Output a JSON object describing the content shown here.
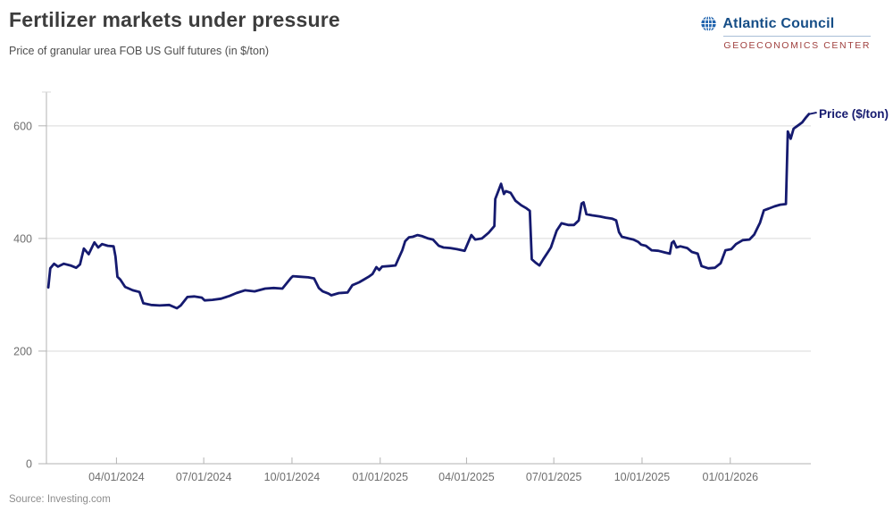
{
  "header": {
    "title": "Fertilizer markets under pressure",
    "subtitle": "Price of granular urea FOB US Gulf futures (in $/ton)",
    "logo": {
      "org": "Atlantic Council",
      "center": "GEOECONOMICS CENTER",
      "icon": "globe-icon",
      "org_color": "#164e87",
      "center_color": "#a0413f"
    }
  },
  "footer": {
    "source": "Source: Investing.com"
  },
  "chart_data": {
    "type": "line",
    "title": "Fertilizer markets under pressure",
    "subtitle": "Price of granular urea FOB US Gulf futures (in $/ton)",
    "series_label": "Price ($/ton)",
    "xlabel": "",
    "ylabel": "",
    "line_color": "#151a6f",
    "grid_color": "#d9d9d9",
    "axis_color": "#b3b3b3",
    "tick_label_color": "#6e6e6e",
    "legend_position": "right-end-of-line",
    "grid": "horizontal-only",
    "x_domain": [
      "2024-01-19",
      "2026-03-26"
    ],
    "y_domain": [
      0,
      660
    ],
    "y_ticks": [
      0,
      200,
      400,
      600
    ],
    "x_ticks": [
      {
        "date": "2024-04-01",
        "label": "04/01/2024"
      },
      {
        "date": "2024-07-01",
        "label": "07/01/2024"
      },
      {
        "date": "2024-10-01",
        "label": "10/01/2024"
      },
      {
        "date": "2025-01-01",
        "label": "01/01/2025"
      },
      {
        "date": "2025-04-01",
        "label": "04/01/2025"
      },
      {
        "date": "2025-07-01",
        "label": "07/01/2025"
      },
      {
        "date": "2025-10-01",
        "label": "10/01/2025"
      },
      {
        "date": "2026-01-01",
        "label": "01/01/2026"
      }
    ],
    "points": [
      [
        "2024-01-21",
        313
      ],
      [
        "2024-01-23",
        347
      ],
      [
        "2024-01-27",
        355
      ],
      [
        "2024-01-31",
        350
      ],
      [
        "2024-02-06",
        355
      ],
      [
        "2024-02-13",
        352
      ],
      [
        "2024-02-19",
        348
      ],
      [
        "2024-02-23",
        354
      ],
      [
        "2024-02-27",
        382
      ],
      [
        "2024-03-03",
        372
      ],
      [
        "2024-03-09",
        393
      ],
      [
        "2024-03-13",
        384
      ],
      [
        "2024-03-17",
        390
      ],
      [
        "2024-03-23",
        387
      ],
      [
        "2024-03-29",
        386
      ],
      [
        "2024-03-31",
        368
      ],
      [
        "2024-04-02",
        332
      ],
      [
        "2024-04-05",
        327
      ],
      [
        "2024-04-10",
        314
      ],
      [
        "2024-04-18",
        308
      ],
      [
        "2024-04-25",
        305
      ],
      [
        "2024-04-29",
        285
      ],
      [
        "2024-05-07",
        282
      ],
      [
        "2024-05-16",
        281
      ],
      [
        "2024-05-26",
        282
      ],
      [
        "2024-06-03",
        276
      ],
      [
        "2024-06-07",
        281
      ],
      [
        "2024-06-14",
        296
      ],
      [
        "2024-06-21",
        297
      ],
      [
        "2024-06-29",
        295
      ],
      [
        "2024-07-02",
        290
      ],
      [
        "2024-07-10",
        291
      ],
      [
        "2024-07-19",
        293
      ],
      [
        "2024-07-28",
        298
      ],
      [
        "2024-08-04",
        303
      ],
      [
        "2024-08-13",
        308
      ],
      [
        "2024-08-23",
        306
      ],
      [
        "2024-09-03",
        311
      ],
      [
        "2024-09-12",
        312
      ],
      [
        "2024-09-21",
        311
      ],
      [
        "2024-09-30",
        330
      ],
      [
        "2024-10-02",
        333
      ],
      [
        "2024-10-09",
        332
      ],
      [
        "2024-10-18",
        331
      ],
      [
        "2024-10-24",
        329
      ],
      [
        "2024-10-29",
        312
      ],
      [
        "2024-11-02",
        306
      ],
      [
        "2024-11-08",
        302
      ],
      [
        "2024-11-11",
        299
      ],
      [
        "2024-11-19",
        303
      ],
      [
        "2024-11-28",
        304
      ],
      [
        "2024-12-03",
        317
      ],
      [
        "2024-12-10",
        322
      ],
      [
        "2024-12-15",
        327
      ],
      [
        "2024-12-20",
        332
      ],
      [
        "2024-12-24",
        337
      ],
      [
        "2024-12-28",
        349
      ],
      [
        "2024-12-31",
        344
      ],
      [
        "2025-01-03",
        350
      ],
      [
        "2025-01-10",
        351
      ],
      [
        "2025-01-17",
        352
      ],
      [
        "2025-01-19",
        360
      ],
      [
        "2025-01-24",
        379
      ],
      [
        "2025-01-27",
        395
      ],
      [
        "2025-01-31",
        402
      ],
      [
        "2025-02-04",
        403
      ],
      [
        "2025-02-09",
        406
      ],
      [
        "2025-02-14",
        404
      ],
      [
        "2025-02-20",
        400
      ],
      [
        "2025-02-25",
        398
      ],
      [
        "2025-03-03",
        387
      ],
      [
        "2025-03-08",
        384
      ],
      [
        "2025-03-15",
        383
      ],
      [
        "2025-03-22",
        381
      ],
      [
        "2025-03-30",
        378
      ],
      [
        "2025-04-02",
        390
      ],
      [
        "2025-04-06",
        406
      ],
      [
        "2025-04-10",
        398
      ],
      [
        "2025-04-17",
        400
      ],
      [
        "2025-04-24",
        410
      ],
      [
        "2025-04-30",
        422
      ],
      [
        "2025-05-01",
        470
      ],
      [
        "2025-05-07",
        497
      ],
      [
        "2025-05-10",
        479
      ],
      [
        "2025-05-12",
        484
      ],
      [
        "2025-05-17",
        481
      ],
      [
        "2025-05-22",
        467
      ],
      [
        "2025-05-28",
        459
      ],
      [
        "2025-06-02",
        454
      ],
      [
        "2025-06-06",
        449
      ],
      [
        "2025-06-08",
        363
      ],
      [
        "2025-06-12",
        357
      ],
      [
        "2025-06-16",
        352
      ],
      [
        "2025-06-20",
        363
      ],
      [
        "2025-06-25",
        376
      ],
      [
        "2025-06-28",
        384
      ],
      [
        "2025-07-04",
        414
      ],
      [
        "2025-07-09",
        427
      ],
      [
        "2025-07-16",
        424
      ],
      [
        "2025-07-22",
        424
      ],
      [
        "2025-07-27",
        432
      ],
      [
        "2025-07-30",
        462
      ],
      [
        "2025-08-01",
        464
      ],
      [
        "2025-08-04",
        443
      ],
      [
        "2025-08-10",
        441
      ],
      [
        "2025-08-18",
        439
      ],
      [
        "2025-08-24",
        437
      ],
      [
        "2025-08-31",
        435
      ],
      [
        "2025-09-04",
        432
      ],
      [
        "2025-09-07",
        411
      ],
      [
        "2025-09-10",
        403
      ],
      [
        "2025-09-17",
        400
      ],
      [
        "2025-09-22",
        398
      ],
      [
        "2025-09-27",
        394
      ],
      [
        "2025-09-30",
        389
      ],
      [
        "2025-10-05",
        387
      ],
      [
        "2025-10-11",
        379
      ],
      [
        "2025-10-18",
        378
      ],
      [
        "2025-10-25",
        375
      ],
      [
        "2025-10-30",
        373
      ],
      [
        "2025-11-01",
        392
      ],
      [
        "2025-11-03",
        395
      ],
      [
        "2025-11-06",
        384
      ],
      [
        "2025-11-10",
        386
      ],
      [
        "2025-11-17",
        383
      ],
      [
        "2025-11-22",
        376
      ],
      [
        "2025-11-28",
        373
      ],
      [
        "2025-12-02",
        351
      ],
      [
        "2025-12-09",
        347
      ],
      [
        "2025-12-16",
        348
      ],
      [
        "2025-12-22",
        356
      ],
      [
        "2025-12-27",
        379
      ],
      [
        "2026-01-02",
        381
      ],
      [
        "2026-01-07",
        390
      ],
      [
        "2026-01-14",
        397
      ],
      [
        "2026-01-21",
        398
      ],
      [
        "2026-01-26",
        407
      ],
      [
        "2026-02-01",
        428
      ],
      [
        "2026-02-05",
        450
      ],
      [
        "2026-02-10",
        453
      ],
      [
        "2026-02-16",
        457
      ],
      [
        "2026-02-22",
        460
      ],
      [
        "2026-02-28",
        461
      ],
      [
        "2026-03-02",
        590
      ],
      [
        "2026-03-05",
        577
      ],
      [
        "2026-03-08",
        595
      ],
      [
        "2026-03-13",
        601
      ],
      [
        "2026-03-17",
        606
      ],
      [
        "2026-03-21",
        615
      ],
      [
        "2026-03-24",
        621
      ]
    ]
  }
}
